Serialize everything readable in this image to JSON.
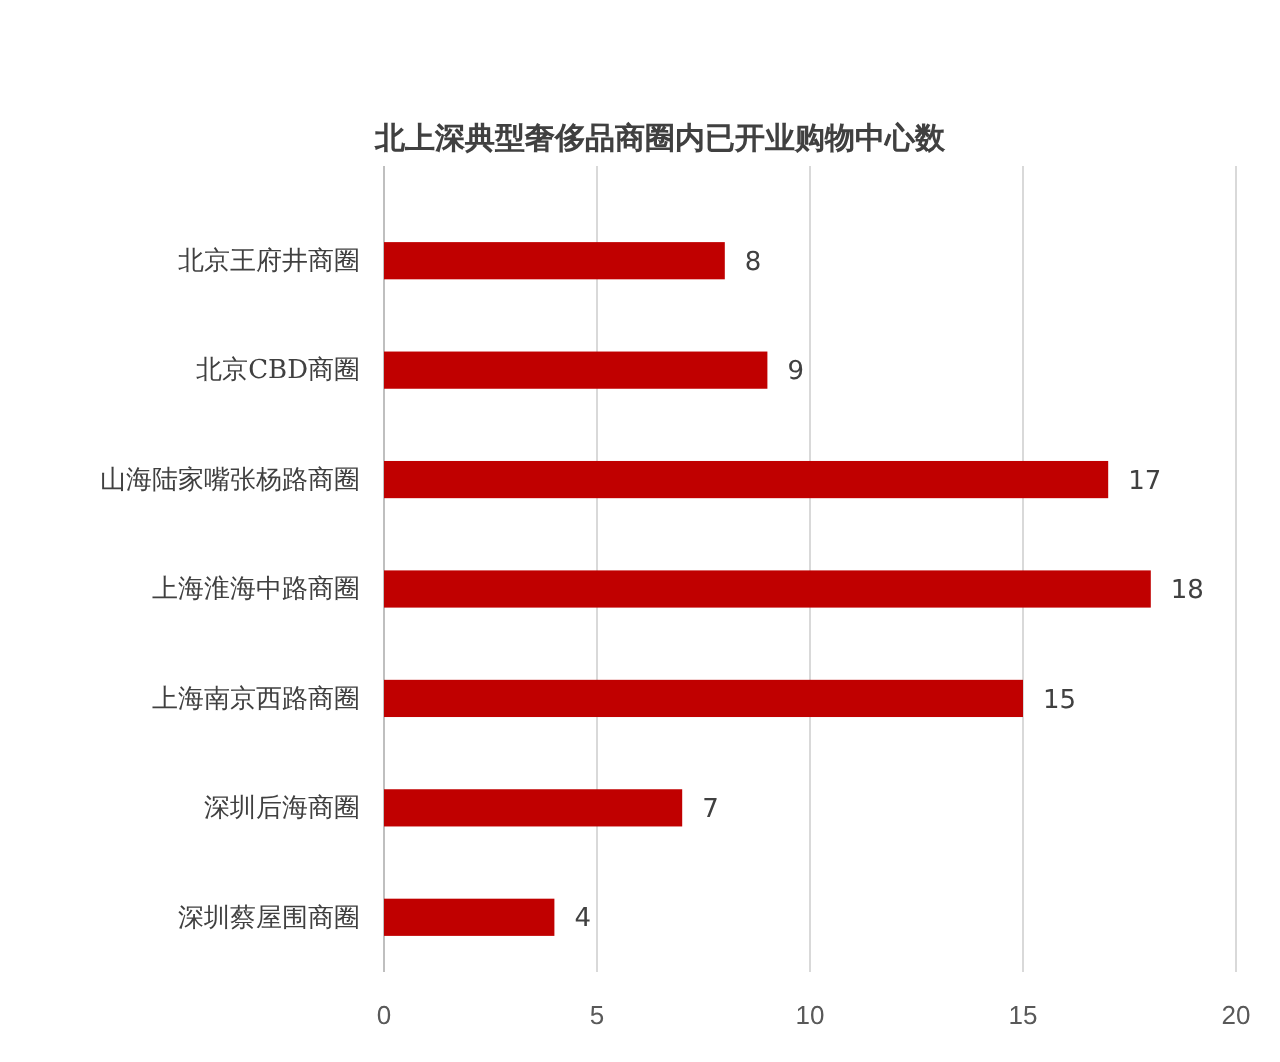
{
  "chart_data": {
    "type": "bar",
    "orientation": "horizontal",
    "title": "北上深典型奢侈品商圈内已开业购物中心数",
    "categories": [
      "北京王府井商圈",
      "北京CBD商圈",
      "山海陆家嘴张杨路商圈",
      "上海淮海中路商圈",
      "上海南京西路商圈",
      "深圳后海商圈",
      "深圳蔡屋围商圈"
    ],
    "values": [
      8,
      9,
      17,
      18,
      15,
      7,
      4
    ],
    "color": "#c00000",
    "xlim": [
      0,
      20
    ],
    "xticks": [
      0,
      5,
      10,
      15,
      20
    ],
    "grid": "x",
    "data_labels": true
  }
}
